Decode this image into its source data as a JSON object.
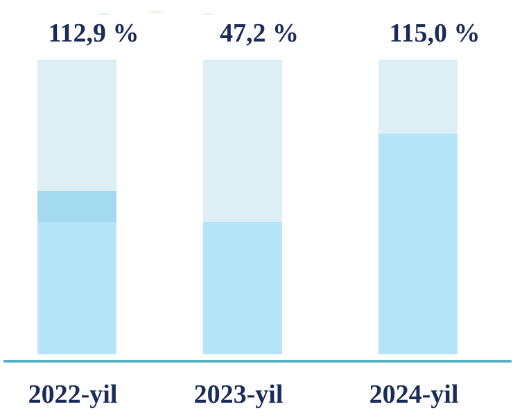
{
  "colors": {
    "label": "#1c2b5a",
    "track": "#ddeef4",
    "fill": "#b5e5f8",
    "band": "#a4daed",
    "baseline": "#5aadc6"
  },
  "chart_data": {
    "type": "bar",
    "categories": [
      "2022-yil",
      "2023-yil",
      "2024-yil"
    ],
    "values": [
      112.9,
      47.2,
      115.0
    ],
    "value_labels": [
      "112,9 %",
      "47,2 %",
      "115,0 %"
    ],
    "title": "",
    "xlabel": "",
    "ylabel": "",
    "grid": false,
    "legend": "none"
  }
}
